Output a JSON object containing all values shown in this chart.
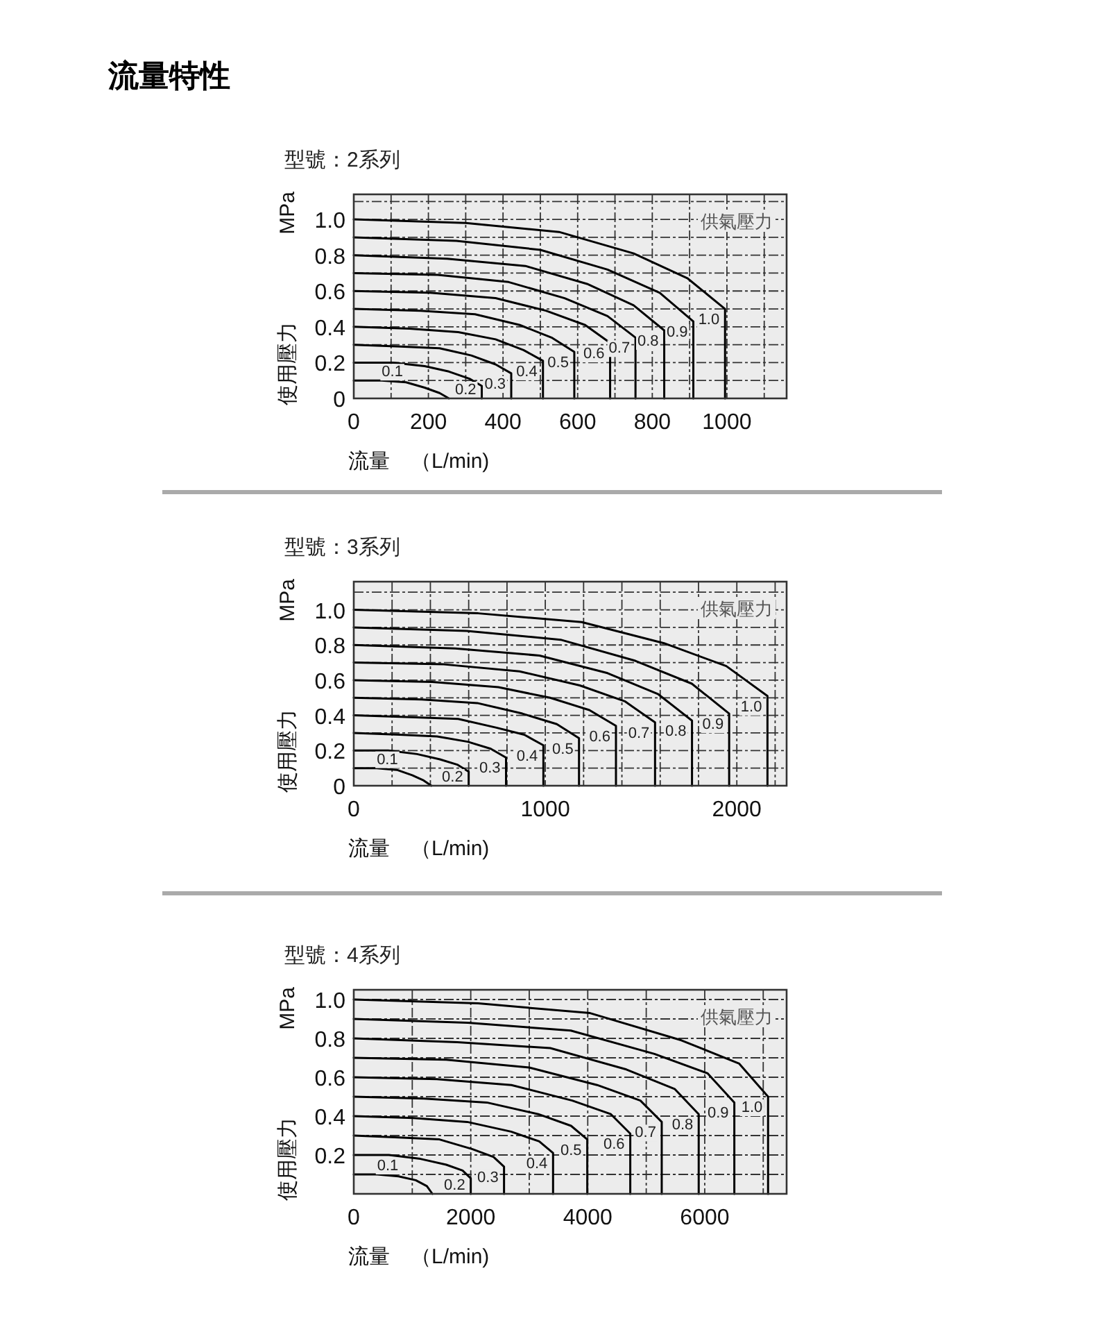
{
  "chart_data": [
    {
      "type": "line",
      "title": "流量特性",
      "subtitle": "型號：2系列",
      "xlabel": "流量　（L/min)",
      "ylabel": "使用壓力　MPa",
      "legend_title": "供氣壓力",
      "grid": true,
      "xlim": [
        0,
        1160
      ],
      "ylim": [
        0,
        1.14
      ],
      "xticks": [
        0,
        {
          "value": 100,
          "label": null
        },
        200,
        {
          "value": 300,
          "label": null
        },
        400,
        {
          "value": 500,
          "label": null
        },
        600,
        {
          "value": 700,
          "label": null
        },
        800,
        {
          "value": 900,
          "label": null
        },
        1000,
        {
          "value": 1100,
          "label": null
        }
      ],
      "yticks": [
        0,
        {
          "value": 0.1,
          "label": null
        },
        0.2,
        {
          "value": 0.3,
          "label": null
        },
        0.4,
        {
          "value": 0.5,
          "label": null
        },
        0.6,
        {
          "value": 0.7,
          "label": null
        },
        0.8,
        {
          "value": 0.9,
          "label": null
        },
        {
          "value": 1,
          "label": "1.0"
        },
        {
          "value": 1.1,
          "label": null
        }
      ],
      "series": [
        {
          "name": "1.0",
          "color": "#000000",
          "x": [
            0,
            300,
            550,
            750,
            895,
            995,
            995
          ],
          "values": [
            1.0,
            0.98,
            0.93,
            0.81,
            0.67,
            0.5,
            0
          ]
        },
        {
          "name": "0.9",
          "color": "#000000",
          "x": [
            0,
            275,
            500,
            680,
            820,
            910,
            910
          ],
          "values": [
            0.9,
            0.88,
            0.83,
            0.72,
            0.59,
            0.43,
            0
          ]
        },
        {
          "name": "0.8",
          "color": "#000000",
          "x": [
            0,
            250,
            460,
            625,
            750,
            832,
            832
          ],
          "values": [
            0.8,
            0.78,
            0.74,
            0.64,
            0.52,
            0.38,
            0
          ]
        },
        {
          "name": "0.7",
          "color": "#000000",
          "x": [
            0,
            225,
            415,
            565,
            680,
            755,
            755
          ],
          "values": [
            0.7,
            0.69,
            0.65,
            0.56,
            0.46,
            0.34,
            0
          ]
        },
        {
          "name": "0.6",
          "color": "#000000",
          "x": [
            0,
            205,
            380,
            515,
            620,
            687,
            687
          ],
          "values": [
            0.6,
            0.59,
            0.56,
            0.49,
            0.41,
            0.31,
            0
          ]
        },
        {
          "name": "0.5",
          "color": "#000000",
          "x": [
            0,
            180,
            325,
            445,
            530,
            591,
            591
          ],
          "values": [
            0.5,
            0.49,
            0.47,
            0.41,
            0.34,
            0.26,
            0
          ]
        },
        {
          "name": "0.4",
          "color": "#000000",
          "x": [
            0,
            150,
            280,
            380,
            455,
            507,
            507
          ],
          "values": [
            0.4,
            0.39,
            0.37,
            0.33,
            0.27,
            0.21,
            0
          ]
        },
        {
          "name": "0.3",
          "color": "#000000",
          "x": [
            0,
            125,
            230,
            315,
            380,
            422,
            422
          ],
          "values": [
            0.3,
            0.29,
            0.28,
            0.24,
            0.19,
            0.14,
            0
          ]
        },
        {
          "name": "0.2",
          "color": "#000000",
          "x": [
            0,
            105,
            190,
            255,
            310,
            343,
            343
          ],
          "values": [
            0.2,
            0.2,
            0.18,
            0.15,
            0.11,
            0.07,
            0
          ]
        },
        {
          "name": "0.1",
          "color": "#000000",
          "x": [
            0,
            75,
            140,
            190,
            230,
            255
          ],
          "values": [
            0.1,
            0.1,
            0.09,
            0.06,
            0.03,
            0
          ]
        }
      ]
    },
    {
      "type": "line",
      "subtitle": "型號：3系列",
      "xlabel": "流量　（L/min)",
      "ylabel": "使用壓力　MPa",
      "legend_title": "供氣壓力",
      "grid": true,
      "xlim": [
        0,
        2260
      ],
      "ylim": [
        0,
        1.16
      ],
      "xticks": [
        0,
        {
          "value": 200,
          "label": null
        },
        {
          "value": 400,
          "label": null
        },
        {
          "value": 600,
          "label": null
        },
        {
          "value": 800,
          "label": null
        },
        1000,
        {
          "value": 1200,
          "label": null
        },
        {
          "value": 1400,
          "label": null
        },
        {
          "value": 1600,
          "label": null
        },
        {
          "value": 1800,
          "label": null
        },
        2000,
        {
          "value": 2200,
          "label": null
        }
      ],
      "yticks": [
        0,
        {
          "value": 0.1,
          "label": null
        },
        0.2,
        {
          "value": 0.3,
          "label": null
        },
        0.4,
        {
          "value": 0.5,
          "label": null
        },
        0.6,
        {
          "value": 0.7,
          "label": null
        },
        0.8,
        {
          "value": 0.9,
          "label": null
        },
        {
          "value": 1,
          "label": "1.0"
        },
        {
          "value": 1.1,
          "label": null
        }
      ],
      "series": [
        {
          "name": "1.0",
          "color": "#000000",
          "x": [
            0,
            650,
            1190,
            1620,
            1945,
            2160,
            2160
          ],
          "values": [
            1.0,
            0.98,
            0.93,
            0.81,
            0.68,
            0.51,
            0
          ]
        },
        {
          "name": "0.9",
          "color": "#000000",
          "x": [
            0,
            590,
            1080,
            1470,
            1765,
            1960,
            1960
          ],
          "values": [
            0.9,
            0.88,
            0.83,
            0.71,
            0.58,
            0.41,
            0
          ]
        },
        {
          "name": "0.8",
          "color": "#000000",
          "x": [
            0,
            530,
            970,
            1325,
            1590,
            1766,
            1766
          ],
          "values": [
            0.8,
            0.78,
            0.74,
            0.64,
            0.52,
            0.37,
            0
          ]
        },
        {
          "name": "0.7",
          "color": "#000000",
          "x": [
            0,
            470,
            865,
            1180,
            1415,
            1573,
            1573
          ],
          "values": [
            0.7,
            0.69,
            0.65,
            0.57,
            0.48,
            0.36,
            0
          ]
        },
        {
          "name": "0.6",
          "color": "#000000",
          "x": [
            0,
            410,
            755,
            1025,
            1230,
            1369,
            1369
          ],
          "values": [
            0.6,
            0.59,
            0.56,
            0.5,
            0.43,
            0.34,
            0
          ]
        },
        {
          "name": "0.5",
          "color": "#000000",
          "x": [
            0,
            355,
            645,
            880,
            1060,
            1176,
            1176
          ],
          "values": [
            0.5,
            0.49,
            0.47,
            0.41,
            0.35,
            0.27,
            0
          ]
        },
        {
          "name": "0.4",
          "color": "#000000",
          "x": [
            0,
            300,
            545,
            745,
            890,
            990,
            990
          ],
          "values": [
            0.4,
            0.39,
            0.38,
            0.33,
            0.29,
            0.23,
            0
          ]
        },
        {
          "name": "0.3",
          "color": "#000000",
          "x": [
            0,
            240,
            435,
            595,
            715,
            795,
            795
          ],
          "values": [
            0.3,
            0.29,
            0.28,
            0.25,
            0.21,
            0.16,
            0
          ]
        },
        {
          "name": "0.2",
          "color": "#000000",
          "x": [
            0,
            180,
            330,
            450,
            540,
            600,
            600
          ],
          "values": [
            0.2,
            0.2,
            0.18,
            0.15,
            0.12,
            0.08,
            0
          ]
        },
        {
          "name": "0.1",
          "color": "#000000",
          "x": [
            0,
            120,
            225,
            305,
            365,
            405
          ],
          "values": [
            0.1,
            0.1,
            0.09,
            0.06,
            0.03,
            0
          ]
        }
      ]
    },
    {
      "type": "line",
      "subtitle": "型號：4系列",
      "xlabel": "流量　（L/min)",
      "ylabel": "使用壓力　MPa",
      "legend_title": "供氣壓力",
      "grid": true,
      "xlim": [
        0,
        7400
      ],
      "ylim": [
        0,
        1.05
      ],
      "xticks": [
        0,
        {
          "value": 1000,
          "label": null
        },
        2000,
        {
          "value": 3000,
          "label": null
        },
        4000,
        {
          "value": 5000,
          "label": null
        },
        6000,
        {
          "value": 7000,
          "label": null
        }
      ],
      "yticks": [
        {
          "value": 0.1,
          "label": null
        },
        0.2,
        {
          "value": 0.3,
          "label": null
        },
        0.4,
        {
          "value": 0.5,
          "label": null
        },
        0.6,
        {
          "value": 0.7,
          "label": null
        },
        0.8,
        {
          "value": 0.9,
          "label": null
        },
        {
          "value": 1,
          "label": "1.0"
        }
      ],
      "series": [
        {
          "name": "1.0",
          "color": "#000000",
          "x": [
            0,
            2125,
            4040,
            5600,
            6590,
            7083,
            7083
          ],
          "values": [
            1.0,
            0.98,
            0.93,
            0.79,
            0.67,
            0.5,
            0
          ]
        },
        {
          "name": "0.9",
          "color": "#000000",
          "x": [
            0,
            1950,
            3710,
            5140,
            6050,
            6506,
            6506
          ],
          "values": [
            0.9,
            0.88,
            0.84,
            0.72,
            0.62,
            0.47,
            0
          ]
        },
        {
          "name": "0.8",
          "color": "#000000",
          "x": [
            0,
            1770,
            3360,
            4660,
            5485,
            5897,
            5897
          ],
          "values": [
            0.8,
            0.78,
            0.75,
            0.64,
            0.54,
            0.41,
            0
          ]
        },
        {
          "name": "0.7",
          "color": "#000000",
          "x": [
            0,
            1580,
            3000,
            4160,
            4900,
            5265,
            5265
          ],
          "values": [
            0.7,
            0.69,
            0.65,
            0.56,
            0.48,
            0.37,
            0
          ]
        },
        {
          "name": "0.6",
          "color": "#000000",
          "x": [
            0,
            1420,
            2695,
            3735,
            4395,
            4727,
            4727
          ],
          "values": [
            0.6,
            0.59,
            0.56,
            0.48,
            0.41,
            0.31,
            0
          ]
        },
        {
          "name": "0.5",
          "color": "#000000",
          "x": [
            0,
            1200,
            2275,
            3155,
            3715,
            3992,
            3992
          ],
          "values": [
            0.5,
            0.49,
            0.47,
            0.41,
            0.35,
            0.28,
            0
          ]
        },
        {
          "name": "0.4",
          "color": "#000000",
          "x": [
            0,
            1020,
            1940,
            2690,
            3170,
            3407,
            3407
          ],
          "values": [
            0.4,
            0.39,
            0.37,
            0.32,
            0.27,
            0.21,
            0
          ]
        },
        {
          "name": "0.3",
          "color": "#000000",
          "x": [
            0,
            770,
            1465,
            2030,
            2390,
            2569,
            2569
          ],
          "values": [
            0.3,
            0.29,
            0.28,
            0.23,
            0.19,
            0.14,
            0
          ]
        },
        {
          "name": "0.2",
          "color": "#000000",
          "x": [
            0,
            600,
            1140,
            1580,
            1860,
            2000,
            2000
          ],
          "values": [
            0.2,
            0.2,
            0.18,
            0.15,
            0.12,
            0.08,
            0
          ]
        },
        {
          "name": "0.1",
          "color": "#000000",
          "x": [
            0,
            400,
            765,
            1060,
            1250,
            1344
          ],
          "values": [
            0.1,
            0.1,
            0.09,
            0.07,
            0.04,
            0
          ]
        }
      ]
    }
  ]
}
